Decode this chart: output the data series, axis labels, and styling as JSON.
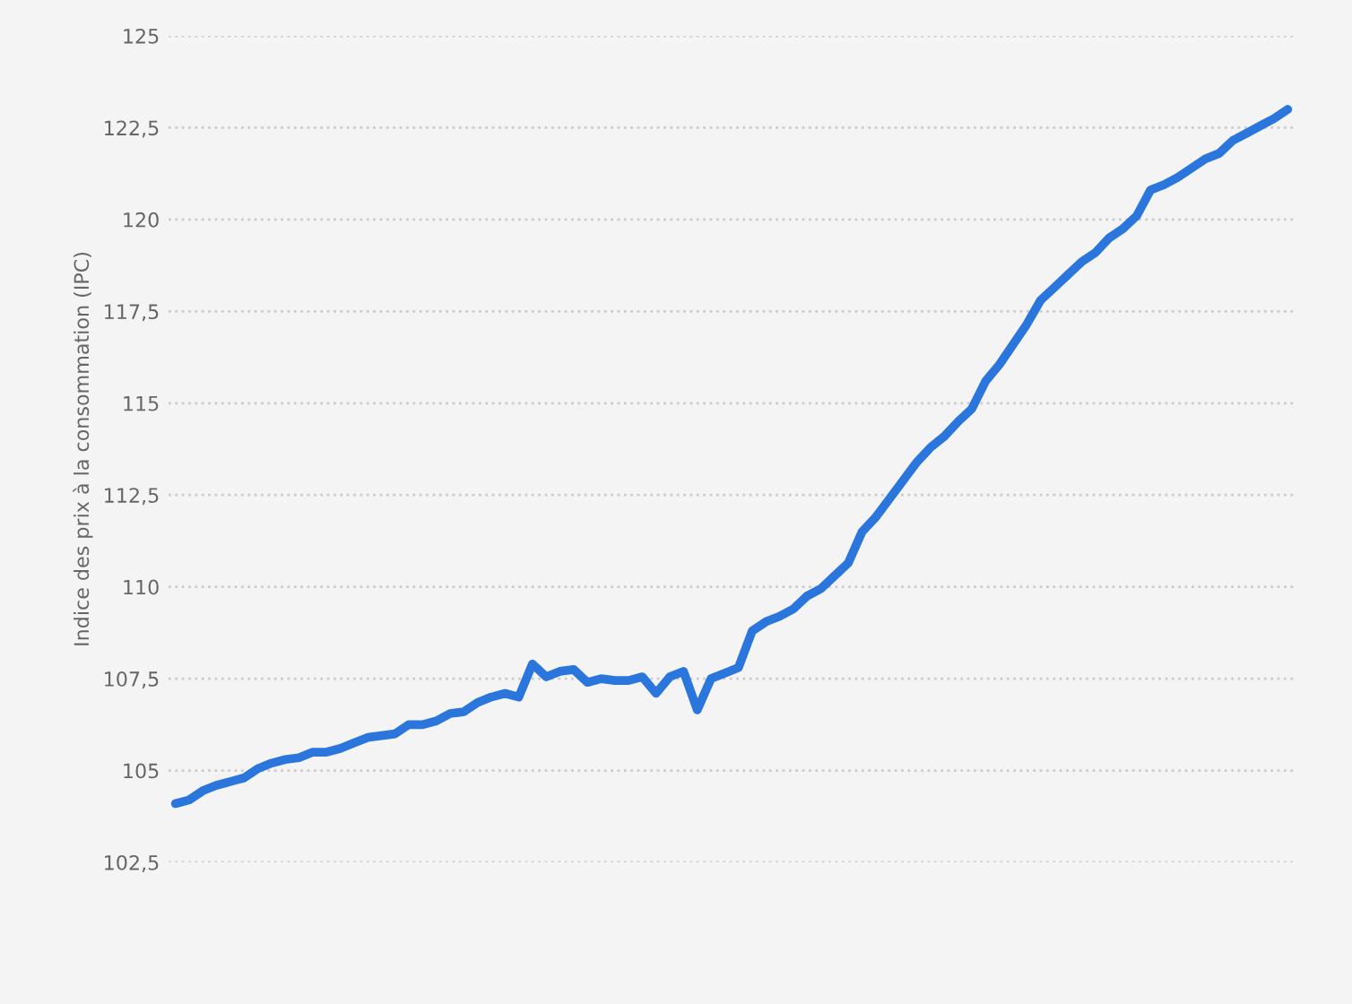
{
  "chart_data": {
    "type": "line",
    "ylabel": "Indice des prix à la consommation (IPC)",
    "categories": [
      null,
      null,
      null,
      null,
      null,
      null,
      null,
      null,
      null,
      null,
      null,
      null,
      null,
      null,
      null,
      null,
      null,
      null,
      null,
      null,
      null,
      null,
      null,
      null,
      null,
      null,
      null,
      null,
      null,
      null,
      null,
      null,
      null,
      null,
      null,
      null,
      null,
      null,
      null,
      null,
      null,
      null,
      null,
      null,
      null,
      null,
      null,
      null,
      null,
      null,
      null,
      null,
      null,
      null,
      null,
      null,
      null,
      null,
      null,
      null,
      null,
      null,
      null,
      null,
      null,
      null,
      null,
      null,
      null,
      null,
      null,
      null,
      null,
      null,
      null,
      null,
      null,
      null,
      null,
      null,
      null,
      null
    ],
    "series": [
      {
        "color": "#2a76dd",
        "values": [
          104.1,
          104.2,
          104.45,
          104.6,
          104.7,
          104.8,
          105.05,
          105.2,
          105.3,
          105.35,
          105.5,
          105.5,
          105.6,
          105.75,
          105.9,
          105.95,
          106.0,
          106.25,
          106.25,
          106.35,
          106.55,
          106.6,
          106.85,
          107.0,
          107.1,
          107.0,
          107.9,
          107.55,
          107.7,
          107.75,
          107.4,
          107.5,
          107.45,
          107.45,
          107.55,
          107.1,
          107.55,
          107.7,
          106.65,
          107.5,
          107.65,
          107.8,
          108.8,
          109.05,
          109.2,
          109.4,
          109.75,
          109.95,
          110.3,
          110.65,
          111.5,
          111.9,
          112.4,
          112.9,
          113.4,
          113.8,
          114.1,
          114.5,
          114.85,
          115.6,
          116.05,
          116.6,
          117.15,
          117.8,
          118.15,
          118.5,
          118.85,
          119.1,
          119.5,
          119.75,
          120.1,
          120.8,
          120.95,
          121.15,
          121.4,
          121.65,
          121.8,
          122.15,
          122.35,
          122.55,
          122.75,
          123.0
        ]
      }
    ],
    "ylim": [
      102.5,
      125
    ],
    "yticks": [
      {
        "value": 102.5,
        "label": "102,5"
      },
      105,
      {
        "value": 107.5,
        "label": "107,5"
      },
      110,
      {
        "value": 112.5,
        "label": "112,5"
      },
      115,
      {
        "value": 117.5,
        "label": "117,5"
      },
      120,
      {
        "value": 122.5,
        "label": "122,5"
      },
      125
    ],
    "grid": "y",
    "tick_labels": "y",
    "marker": "none",
    "line_style": "solid",
    "legend": false
  }
}
